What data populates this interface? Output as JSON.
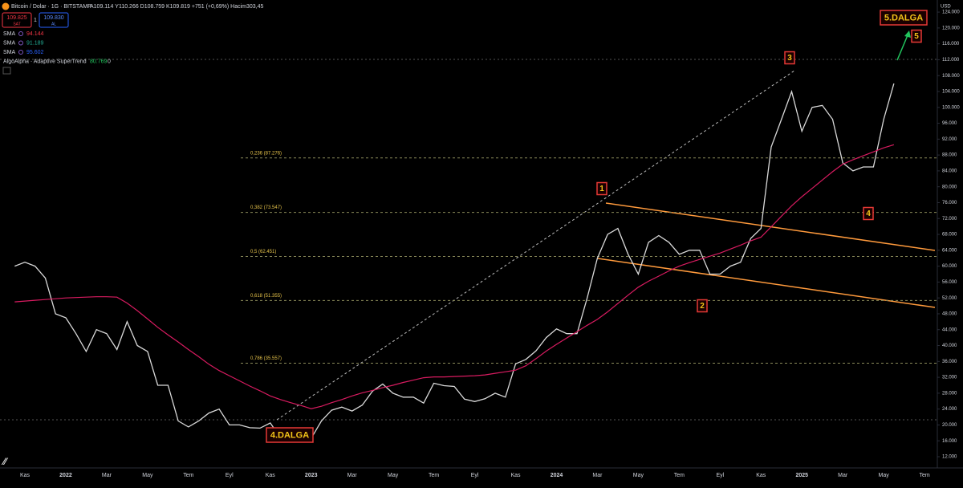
{
  "header": {
    "title": "Bitcoin / Dolar · 1G · BITSTAMP",
    "ohlc": "A109.114 Y110.266 D108.759 K109.819 +751 (+0,69%) Hacim303,45",
    "sell_price": "109.825",
    "sell_label": "SAT",
    "quantity": "1",
    "buy_price": "109.830",
    "buy_label": "AL",
    "currency": "USD"
  },
  "indicators": [
    {
      "name": "SMA",
      "value": "94.144",
      "color": "#f23645"
    },
    {
      "name": "SMA",
      "value": "91.189",
      "color": "#22ab94"
    },
    {
      "name": "SMA",
      "value": "95.602",
      "color": "#2962ff"
    },
    {
      "name": "AlgoAlpha · Adaptive SuperTrend",
      "value": "80.769",
      "extra": "0"
    }
  ],
  "chart_data": {
    "type": "line",
    "categories": [
      null,
      "Kas",
      null,
      null,
      null,
      "2022",
      null,
      null,
      null,
      "Mar",
      null,
      null,
      null,
      "May",
      null,
      null,
      null,
      "Tem",
      null,
      null,
      null,
      "Eyl",
      null,
      null,
      null,
      "Kas",
      null,
      null,
      null,
      "2023",
      null,
      null,
      null,
      "Mar",
      null,
      null,
      null,
      "May",
      null,
      null,
      null,
      "Tem",
      null,
      null,
      null,
      "Eyl",
      null,
      null,
      null,
      "Kas",
      null,
      null,
      null,
      "2024",
      null,
      null,
      null,
      "Mar",
      null,
      null,
      null,
      "May",
      null,
      null,
      null,
      "Tem",
      null,
      null,
      null,
      "Eyl",
      null,
      null,
      null,
      "Kas",
      null,
      null,
      null,
      "2025",
      null,
      null,
      null,
      "Mar",
      null,
      null,
      null,
      "May",
      null,
      null,
      null,
      "Tem"
    ],
    "series": [
      {
        "color": "#d9d9d9",
        "values": [
          60000,
          61000,
          60000,
          57000,
          48000,
          47000,
          43000,
          38500,
          44000,
          43000,
          39000,
          46000,
          40000,
          38500,
          30000,
          30000,
          21000,
          19500,
          21000,
          23000,
          24000,
          20000,
          20000,
          19300,
          19200,
          20500,
          16800,
          17000,
          17300,
          16600,
          21000,
          23700,
          24500,
          23500,
          25000,
          28500,
          30300,
          28000,
          27000,
          27000,
          25500,
          30500,
          29900,
          29700,
          26500,
          25900,
          26600,
          28000,
          27000,
          35400,
          36500,
          38700,
          42000,
          44200,
          43000,
          43000,
          52000,
          62000,
          68000,
          69500,
          63000,
          58000,
          66000,
          67700,
          66000,
          63000,
          64000,
          64000,
          58000,
          58000,
          60000,
          61000,
          67000,
          69500,
          90000,
          97000,
          104000,
          94000,
          100000,
          100500,
          97000,
          86000,
          84000,
          85000,
          85000,
          97000,
          106000,
          null,
          null,
          null
        ]
      },
      {
        "name": "SMA",
        "color": "#d81b60",
        "values": [
          51000,
          51200,
          51400,
          51600,
          51800,
          52000,
          52100,
          52200,
          52300,
          52300,
          52200,
          50700,
          48800,
          46700,
          44600,
          42700,
          40900,
          39000,
          37200,
          35300,
          33700,
          32400,
          31100,
          29800,
          28600,
          27300,
          26400,
          25600,
          24900,
          24100,
          24700,
          25600,
          26400,
          27300,
          28100,
          28700,
          29400,
          30000,
          30700,
          31300,
          31900,
          32100,
          32100,
          32200,
          32300,
          32400,
          32600,
          33000,
          33400,
          33800,
          34900,
          36700,
          38600,
          40300,
          41900,
          43500,
          45100,
          46600,
          48500,
          50600,
          52700,
          54700,
          56200,
          57500,
          58800,
          60000,
          60900,
          61700,
          62500,
          63300,
          64300,
          65300,
          66400,
          67300,
          69900,
          72600,
          75200,
          77500,
          79600,
          81700,
          83800,
          85700,
          86800,
          87800,
          88800,
          89800,
          90600,
          null,
          null,
          null
        ]
      }
    ],
    "levels": [
      {
        "label": "0,236 (87.276)",
        "value": 87276
      },
      {
        "label": "0,382 (73.547)",
        "value": 73547
      },
      {
        "label": "0,5 (62.451)",
        "value": 62451
      },
      {
        "label": "0,618 (51.355)",
        "value": 51355
      },
      {
        "label": "0,786 (35.557)",
        "value": 35557
      }
    ],
    "annotations": [
      "1",
      "2",
      "3",
      "4",
      "5",
      "4.DALGA",
      "5.DALGA"
    ],
    "ylim": [
      9170,
      127050
    ],
    "yticks": [
      {
        "value": 12000,
        "label": "12.000"
      },
      {
        "value": 16000,
        "label": "16.000"
      },
      {
        "value": 20000,
        "label": "20.000"
      },
      {
        "value": 24000,
        "label": "24.000"
      },
      {
        "value": 28000,
        "label": "28.000"
      },
      {
        "value": 32000,
        "label": "32.000"
      },
      {
        "value": 36000,
        "label": "36.000"
      },
      {
        "value": 40000,
        "label": "40.000"
      },
      {
        "value": 44000,
        "label": "44.000"
      },
      {
        "value": 48000,
        "label": "48.000"
      },
      {
        "value": 52000,
        "label": "52.000"
      },
      {
        "value": 56000,
        "label": "56.000"
      },
      {
        "value": 60000,
        "label": "60.000"
      },
      {
        "value": 64000,
        "label": "64.000"
      },
      {
        "value": 68000,
        "label": "68.000"
      },
      {
        "value": 72000,
        "label": "72.000"
      },
      {
        "value": 76000,
        "label": "76.000"
      },
      {
        "value": 80000,
        "label": "80.000"
      },
      {
        "value": 84000,
        "label": "84.000"
      },
      {
        "value": 88000,
        "label": "88.000"
      },
      {
        "value": 92000,
        "label": "92.000"
      },
      {
        "value": 96000,
        "label": "96.000"
      },
      {
        "value": 100000,
        "label": "100.000"
      },
      {
        "value": 104000,
        "label": "104.000"
      },
      {
        "value": 108000,
        "label": "108.000"
      },
      {
        "value": 112000,
        "label": "112.000"
      },
      {
        "value": 116000,
        "label": "116.000"
      },
      {
        "value": 120000,
        "label": "120.000"
      },
      {
        "value": 124000,
        "label": "124.000"
      }
    ],
    "grid": false
  }
}
